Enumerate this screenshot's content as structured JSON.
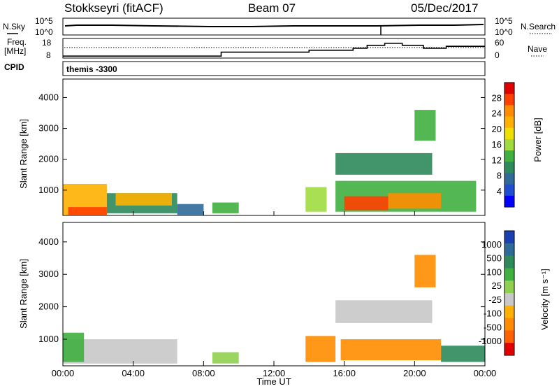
{
  "header": {
    "radar": "Stokkseyri (fitACF)",
    "beam": "Beam 07",
    "date": "05/Dec/2017"
  },
  "noise_panel": {
    "left_label": "N.Sky",
    "left_ticks": [
      "10^5",
      "10^0"
    ],
    "right_label": "N.Search",
    "right_ticks": [
      "10^5",
      "10^0"
    ]
  },
  "freq_panel": {
    "left_label_line1": "Freq.",
    "left_label_line2": "[MHz]",
    "left_ticks": [
      "18",
      "8"
    ],
    "right_label": "Nave",
    "right_ticks": [
      "60",
      "0"
    ]
  },
  "cpid_panel": {
    "label": "CPID",
    "value": "themis -3300"
  },
  "power_panel": {
    "ylabel": "Slant Range [km]",
    "yticks": [
      "4000",
      "3000",
      "2000",
      "1000"
    ],
    "colorbar_label": "Power [dB]",
    "colorbar_ticks": [
      "28",
      "24",
      "20",
      "16",
      "12",
      "8",
      "4"
    ],
    "colors": [
      "#e00000",
      "#ff4000",
      "#ff8c00",
      "#ffb000",
      "#f0e000",
      "#a0dc40",
      "#40b040",
      "#2e8a5a",
      "#2f6a98",
      "#1f4fd0",
      "#0000ff"
    ]
  },
  "velocity_panel": {
    "ylabel": "Slant Range [km]",
    "yticks": [
      "4000",
      "3000",
      "2000",
      "1000"
    ],
    "colorbar_label": "Velocity [m s⁻¹]",
    "colorbar_ticks": [
      "1000",
      "500",
      "100",
      "25",
      "-25",
      "-100",
      "-500",
      "-1000"
    ],
    "colors": [
      "#1a3fb0",
      "#2e6a98",
      "#2e8a5a",
      "#40b040",
      "#90d050",
      "#c8c8c8",
      "#ffb000",
      "#ff8c00",
      "#ff6000",
      "#e00000"
    ]
  },
  "xaxis": {
    "label": "Time UT",
    "ticks": [
      "00:00",
      "04:00",
      "08:00",
      "12:00",
      "16:00",
      "20:00",
      "00:00"
    ]
  },
  "chart_data": {
    "type": "heatmap",
    "title": "Stokkseyri (fitACF)",
    "subtitle": "Beam 07",
    "xlabel": "Time UT",
    "ylabel": "Slant Range [km]",
    "xlim_hours": [
      0,
      24
    ],
    "ylim_km": [
      180,
      4600
    ],
    "frequency_steps": [
      {
        "start_h": 0.0,
        "end_h": 9.0,
        "mhz": 9.0
      },
      {
        "start_h": 9.0,
        "end_h": 14.0,
        "mhz": 11.0
      },
      {
        "start_h": 14.0,
        "end_h": 16.5,
        "mhz": 12.0
      },
      {
        "start_h": 16.5,
        "end_h": 17.3,
        "mhz": 13.0
      },
      {
        "start_h": 17.3,
        "end_h": 18.3,
        "mhz": 14.5
      },
      {
        "start_h": 18.3,
        "end_h": 19.3,
        "mhz": 15.5
      },
      {
        "start_h": 19.3,
        "end_h": 20.5,
        "mhz": 14.5
      },
      {
        "start_h": 20.5,
        "end_h": 21.8,
        "mhz": 13.0
      },
      {
        "start_h": 21.8,
        "end_h": 24.0,
        "mhz": 14.0
      }
    ],
    "power_regions": [
      {
        "t0": 0.0,
        "t1": 2.5,
        "r0": 200,
        "r1": 1200,
        "db": 20
      },
      {
        "t0": 0.3,
        "t1": 2.5,
        "r0": 200,
        "r1": 450,
        "db": 28
      },
      {
        "t0": 2.5,
        "t1": 6.5,
        "r0": 250,
        "r1": 900,
        "db": 10
      },
      {
        "t0": 3.0,
        "t1": 6.2,
        "r0": 500,
        "r1": 900,
        "db": 20
      },
      {
        "t0": 6.5,
        "t1": 8.0,
        "r0": 200,
        "r1": 550,
        "db": 6
      },
      {
        "t0": 8.5,
        "t1": 10.0,
        "r0": 250,
        "r1": 600,
        "db": 12
      },
      {
        "t0": 13.8,
        "t1": 15.0,
        "r0": 300,
        "r1": 1100,
        "db": 16
      },
      {
        "t0": 15.5,
        "t1": 23.5,
        "r0": 300,
        "r1": 1300,
        "db": 12
      },
      {
        "t0": 16.0,
        "t1": 18.5,
        "r0": 350,
        "r1": 800,
        "db": 28
      },
      {
        "t0": 18.5,
        "t1": 21.5,
        "r0": 400,
        "r1": 900,
        "db": 24
      },
      {
        "t0": 15.5,
        "t1": 21.0,
        "r0": 1500,
        "r1": 2200,
        "db": 8
      },
      {
        "t0": 20.0,
        "t1": 21.2,
        "r0": 2600,
        "r1": 3600,
        "db": 12
      }
    ],
    "velocity_regions": [
      {
        "t0": 0.0,
        "t1": 6.5,
        "r0": 250,
        "r1": 1000,
        "ms": 0
      },
      {
        "t0": 0.0,
        "t1": 1.2,
        "r0": 300,
        "r1": 1200,
        "ms": 200
      },
      {
        "t0": 8.5,
        "t1": 10.0,
        "r0": 250,
        "r1": 600,
        "ms": 50
      },
      {
        "t0": 13.8,
        "t1": 15.5,
        "r0": 300,
        "r1": 1100,
        "ms": -200
      },
      {
        "t0": 15.8,
        "t1": 21.5,
        "r0": 350,
        "r1": 1000,
        "ms": -200
      },
      {
        "t0": 15.5,
        "t1": 21.0,
        "r0": 1500,
        "r1": 2200,
        "ms": -10
      },
      {
        "t0": 21.5,
        "t1": 24.0,
        "r0": 300,
        "r1": 800,
        "ms": 300
      },
      {
        "t0": 20.0,
        "t1": 21.2,
        "r0": 2600,
        "r1": 3600,
        "ms": -200
      }
    ]
  }
}
